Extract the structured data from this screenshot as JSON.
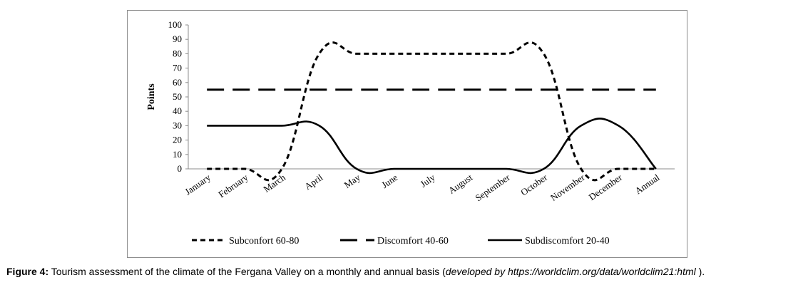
{
  "chart_data": {
    "type": "line",
    "categories": [
      "January",
      "February",
      "March",
      "April",
      "May",
      "June",
      "July",
      "August",
      "September",
      "October",
      "November",
      "December",
      "Annual"
    ],
    "ylabel": "Points",
    "xlabel": "",
    "ylim": [
      0,
      100
    ],
    "yticks": [
      0,
      10,
      20,
      30,
      40,
      50,
      60,
      70,
      80,
      90,
      100
    ],
    "grid": false,
    "legend_position": "bottom",
    "series": [
      {
        "name": "Subconfort  60-80",
        "style": "short-dash",
        "color": "#000000",
        "values": [
          0,
          0,
          0,
          80,
          80,
          80,
          80,
          80,
          80,
          80,
          0,
          0,
          0
        ]
      },
      {
        "name": "Discomfort 40-60",
        "style": "long-dash",
        "color": "#000000",
        "values": [
          55,
          55,
          55,
          55,
          55,
          55,
          55,
          55,
          55,
          55,
          55,
          55,
          55
        ]
      },
      {
        "name": "Subdiscomfort  20-40",
        "style": "solid",
        "color": "#000000",
        "values": [
          30,
          30,
          30,
          30,
          0,
          0,
          0,
          0,
          0,
          0,
          30,
          30,
          0
        ]
      }
    ]
  },
  "caption": {
    "label": "Figure 4:",
    "text": " Tourism assessment of the climate of the Fergana Valley on a monthly and annual basis (",
    "italic": "developed by https://worldclim.org/data/worldclim21:html",
    "end": " )."
  }
}
